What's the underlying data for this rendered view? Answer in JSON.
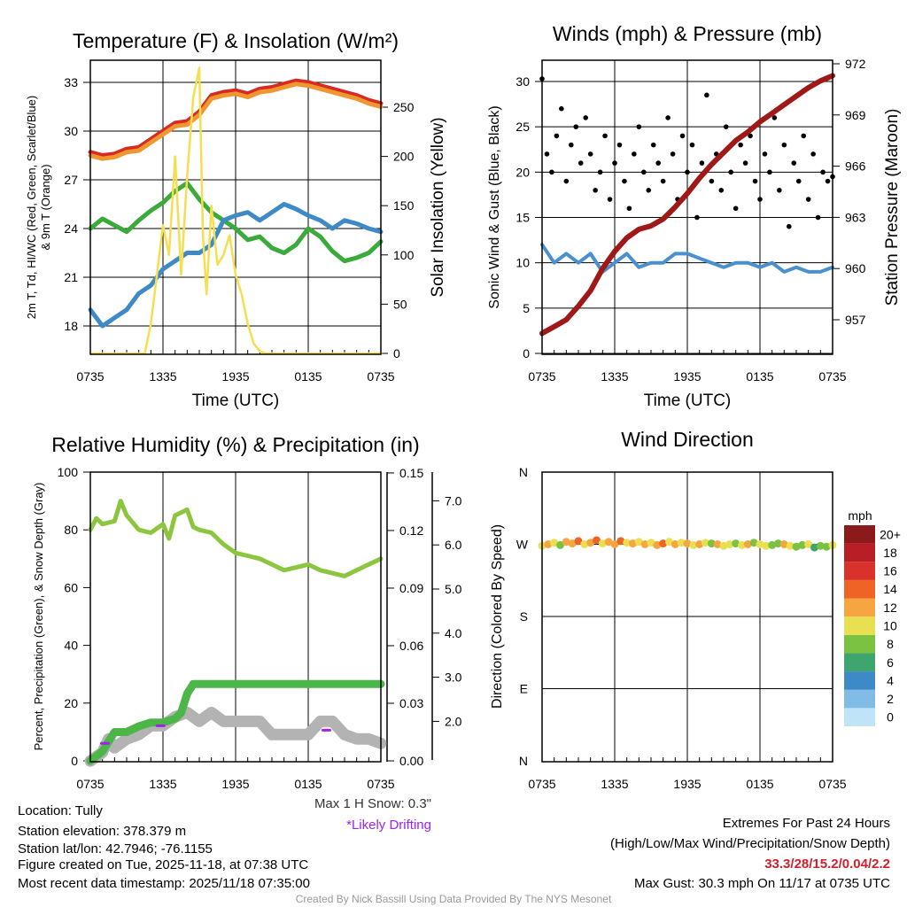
{
  "time_ticks": [
    "0735",
    "1335",
    "1935",
    "0135",
    "0735"
  ],
  "chart_data": [
    {
      "type": "line",
      "title": "Temperature (F) & Insolation (W/m²)",
      "xlabel": "Time (UTC)",
      "ylabel_line1": "2m T, Td, HI/WC (Red, Green, Scarlet/Blue)",
      "ylabel_line2": "& 9m T (Orange)",
      "ylabel_right": "Solar Insolation (Yellow)",
      "x_hours": [
        0,
        1,
        2,
        3,
        4,
        5,
        6,
        7,
        8,
        9,
        10,
        11,
        12,
        13,
        14,
        15,
        16,
        17,
        18,
        19,
        20,
        21,
        22,
        23,
        24
      ],
      "yticks_left": [
        "18",
        "21",
        "24",
        "27",
        "30",
        "33"
      ],
      "ytick_values_left": [
        18,
        21,
        24,
        27,
        30,
        33
      ],
      "yticks_right": [
        "0",
        "50",
        "100",
        "150",
        "200",
        "250"
      ],
      "ytick_values_right": [
        0,
        50,
        100,
        150,
        200,
        250
      ],
      "series": [
        {
          "name": "2m T",
          "color": "#d62a22",
          "values": [
            28.7,
            28.5,
            28.6,
            28.9,
            29.0,
            29.5,
            30.0,
            30.5,
            30.6,
            31.2,
            32.2,
            32.4,
            32.5,
            32.3,
            32.6,
            32.7,
            32.9,
            33.1,
            33.0,
            32.8,
            32.6,
            32.4,
            32.2,
            31.9,
            31.7
          ]
        },
        {
          "name": "9m T",
          "color": "#f0962e",
          "values": [
            28.5,
            28.3,
            28.4,
            28.7,
            28.8,
            29.3,
            29.8,
            30.3,
            30.4,
            31.0,
            32.0,
            32.2,
            32.3,
            32.1,
            32.4,
            32.5,
            32.7,
            32.9,
            32.8,
            32.6,
            32.4,
            32.2,
            32.0,
            31.7,
            31.5
          ]
        },
        {
          "name": "Td",
          "color": "#3aaa3a",
          "values": [
            24.0,
            24.6,
            24.2,
            23.8,
            24.5,
            25.1,
            25.6,
            26.3,
            26.8,
            25.8,
            25.0,
            24.5,
            24.0,
            23.3,
            23.5,
            22.8,
            22.5,
            23.0,
            24.0,
            23.5,
            22.6,
            22.0,
            22.2,
            22.5,
            23.2
          ]
        },
        {
          "name": "HI/WC",
          "color": "#3d8ac6",
          "values": [
            19.0,
            18.0,
            18.5,
            19.0,
            20.0,
            20.5,
            21.5,
            22.0,
            22.5,
            22.5,
            23.0,
            24.5,
            24.8,
            25.0,
            24.5,
            25.0,
            25.5,
            25.2,
            24.8,
            24.5,
            24.0,
            24.5,
            24.3,
            24.0,
            23.8
          ]
        },
        {
          "name": "Solar Insolation",
          "color": "#f5de50",
          "axis": "right",
          "x_hours": [
            0,
            4.5,
            5,
            5.5,
            6,
            6.5,
            7,
            7.5,
            8,
            8.5,
            9,
            9.3,
            9.6,
            10,
            10.5,
            11,
            11.5,
            12,
            12.5,
            13,
            13.5,
            14,
            14.5,
            24
          ],
          "values": [
            0,
            0,
            30,
            80,
            130,
            100,
            200,
            80,
            180,
            260,
            290,
            120,
            60,
            150,
            90,
            100,
            120,
            80,
            60,
            30,
            10,
            2,
            0,
            0
          ]
        }
      ]
    },
    {
      "type": "line+scatter",
      "title": "Winds (mph) & Pressure (mb)",
      "xlabel": "Time (UTC)",
      "ylabel": "Sonic Wind & Gust (Blue, Black)",
      "ylabel_right": "Station Pressure (Maroon)",
      "yticks_left": [
        "0",
        "5",
        "10",
        "15",
        "20",
        "25",
        "30"
      ],
      "ytick_values_left": [
        0,
        5,
        10,
        15,
        20,
        25,
        30
      ],
      "yticks_right": [
        "957",
        "960",
        "963",
        "966",
        "969",
        "972"
      ],
      "ytick_values_right": [
        957,
        960,
        963,
        966,
        969,
        972
      ],
      "x_hours": [
        0,
        1,
        2,
        3,
        4,
        5,
        6,
        7,
        8,
        9,
        10,
        11,
        12,
        13,
        14,
        15,
        16,
        17,
        18,
        19,
        20,
        21,
        22,
        23,
        24
      ],
      "series": [
        {
          "name": "Sonic Wind",
          "color": "#4a90cf",
          "values": [
            12,
            10,
            11,
            10,
            11,
            9,
            10,
            11,
            9.5,
            10,
            10,
            11,
            11,
            10.5,
            10,
            9.5,
            10,
            10,
            9.5,
            10,
            9,
            9.5,
            9,
            9,
            9.5
          ]
        },
        {
          "name": "Station Pressure",
          "color": "#a01818",
          "axis": "right",
          "values": [
            956.2,
            956.6,
            957.0,
            957.8,
            958.7,
            960.0,
            961.0,
            961.8,
            962.3,
            962.5,
            962.9,
            963.6,
            964.4,
            965.3,
            966.1,
            966.8,
            967.5,
            968.0,
            968.6,
            969.1,
            969.6,
            970.1,
            970.6,
            971.0,
            971.3
          ]
        }
      ],
      "gusts": {
        "name": "Gust",
        "color": "#000000",
        "x_start_hour": 0,
        "x_step_hours": 0.4,
        "values": [
          30.3,
          22,
          20,
          24,
          27,
          19,
          23,
          25,
          21,
          26,
          22,
          18,
          20,
          24,
          17,
          21,
          23,
          19,
          16,
          22,
          25,
          20,
          18,
          23,
          21,
          19,
          26,
          22,
          17,
          24,
          20,
          23,
          15,
          21,
          28.5,
          19,
          22,
          18,
          25,
          20,
          16,
          23,
          21,
          24,
          19,
          17,
          22,
          20,
          26,
          18,
          23,
          14,
          21,
          19,
          24,
          17,
          22,
          15,
          20,
          19,
          19.5
        ]
      }
    },
    {
      "type": "line",
      "title": "Relative Humidity (%) & Precipitation (in)",
      "ylabel": "Percent, Precipitation (Green), & Snow Depth (Gray)",
      "yticks_left": [
        "0",
        "20",
        "40",
        "60",
        "80",
        "100"
      ],
      "ytick_values_left": [
        0,
        20,
        40,
        60,
        80,
        100
      ],
      "yticks_mid": [
        "0.00",
        "0.03",
        "0.06",
        "0.09",
        "0.12",
        "0.15"
      ],
      "ytick_values_mid": [
        0,
        0.03,
        0.06,
        0.09,
        0.12,
        0.15
      ],
      "yticks_right": [
        "2.0",
        "3.0",
        "4.0",
        "5.0",
        "6.0",
        "7.0"
      ],
      "ytick_values_right": [
        2,
        3,
        4,
        5,
        6,
        7
      ],
      "series": [
        {
          "name": "Relative Humidity",
          "color": "#8cc63f",
          "x_hours": [
            0,
            0.5,
            1,
            2,
            2.5,
            3,
            4,
            5,
            6,
            6.5,
            7,
            8,
            8.5,
            9,
            10,
            11,
            12,
            13,
            14,
            15,
            16,
            17,
            18,
            19,
            20,
            21,
            22,
            23,
            24
          ],
          "values": [
            80,
            84,
            82,
            83,
            90,
            85,
            80,
            79,
            82,
            77,
            85,
            87,
            81,
            80,
            79,
            75,
            72,
            71,
            70,
            68,
            66,
            67,
            68,
            66,
            65,
            64,
            66,
            68,
            70
          ]
        },
        {
          "name": "Snow Depth",
          "color": "#b3b3b3",
          "axis": "right",
          "x_hours": [
            0,
            1,
            1.5,
            2,
            3,
            4,
            5,
            6,
            7,
            8,
            9,
            10,
            11,
            12,
            13,
            14,
            15,
            16,
            17,
            18,
            19,
            20,
            21,
            22,
            23,
            24
          ],
          "values": [
            1.1,
            1.3,
            1.6,
            1.4,
            1.6,
            1.7,
            1.9,
            1.9,
            2.1,
            2.2,
            2.0,
            2.2,
            2.0,
            2.0,
            2.0,
            2.0,
            1.7,
            1.7,
            1.7,
            1.7,
            2.0,
            2.0,
            1.7,
            1.6,
            1.6,
            1.5
          ]
        },
        {
          "name": "Precipitation",
          "color": "#4cb648",
          "axis": "mid",
          "x_hours": [
            0,
            1,
            1.5,
            2,
            3,
            4,
            5,
            6,
            7,
            7.5,
            8,
            8.5,
            9,
            24
          ],
          "values": [
            0,
            0.005,
            0.01,
            0.015,
            0.015,
            0.018,
            0.02,
            0.02,
            0.022,
            0.025,
            0.035,
            0.04,
            0.04,
            0.04
          ]
        }
      ],
      "drifting_marks": {
        "color": "#a020f0",
        "x_hours": [
          1.2,
          5.8,
          19.5
        ],
        "values": [
          1.5,
          1.9,
          1.8
        ]
      },
      "max_snow_note": "Max 1 H Snow: 0.3\"",
      "drifting_note": "*Likely Drifting"
    },
    {
      "type": "scatter",
      "title": "Wind Direction",
      "ylabel": "Direction (Colored By Speed)",
      "yticks": [
        "N",
        "E",
        "S",
        "W",
        "N"
      ],
      "ytick_values": [
        0,
        90,
        180,
        270,
        360
      ],
      "x_start_hour": 0,
      "x_step_hours": 0.5,
      "directions": [
        268,
        270,
        272,
        269,
        273,
        271,
        274,
        270,
        272,
        275,
        271,
        273,
        270,
        274,
        272,
        271,
        273,
        270,
        272,
        269,
        271,
        273,
        270,
        272,
        271,
        269,
        270,
        272,
        271,
        270,
        268,
        270,
        271,
        269,
        270,
        272,
        270,
        268,
        269,
        271,
        270,
        268,
        267,
        269,
        270,
        266,
        268,
        267,
        269
      ],
      "speeds": [
        10,
        12,
        11,
        9,
        13,
        12,
        14,
        11,
        12,
        15,
        10,
        13,
        12,
        14,
        11,
        12,
        10,
        13,
        11,
        12,
        15,
        10,
        12,
        11,
        13,
        10,
        12,
        11,
        9,
        12,
        10,
        11,
        8,
        10,
        12,
        9,
        11,
        10,
        8,
        9,
        12,
        10,
        8,
        9,
        10,
        7,
        9,
        8,
        10
      ],
      "legend_title": "mph",
      "legend_labels": [
        "0",
        "2",
        "4",
        "6",
        "8",
        "10",
        "12",
        "14",
        "16",
        "18",
        "20+"
      ],
      "legend_colors": [
        "#bfe3f7",
        "#80bce6",
        "#3d8ac6",
        "#3ea56e",
        "#7cc242",
        "#e8e051",
        "#f7a541",
        "#ef6327",
        "#d8322a",
        "#b81e24",
        "#8c1a1a"
      ]
    }
  ],
  "info": {
    "location": "Location: Tully",
    "elevation": "Station elevation: 378.379 m",
    "latlon": "Station lat/lon: 42.7946; -76.1155",
    "created": "Figure created on Tue, 2025-11-18, at 07:38 UTC",
    "recent": "Most recent data timestamp: 2025/11/18 07:35:00"
  },
  "extremes": {
    "heading": "Extremes For Past 24 Hours",
    "subheading": "(High/Low/Max Wind/Precipitation/Snow Depth)",
    "values": "33.3/28/15.2/0.04/2.2",
    "values_color": "#d0202a",
    "max_gust": "Max Gust: 30.3 mph On 11/17 at 0735 UTC"
  },
  "credit": "Created By Nick Bassill Using Data Provided By The NYS Mesonet"
}
